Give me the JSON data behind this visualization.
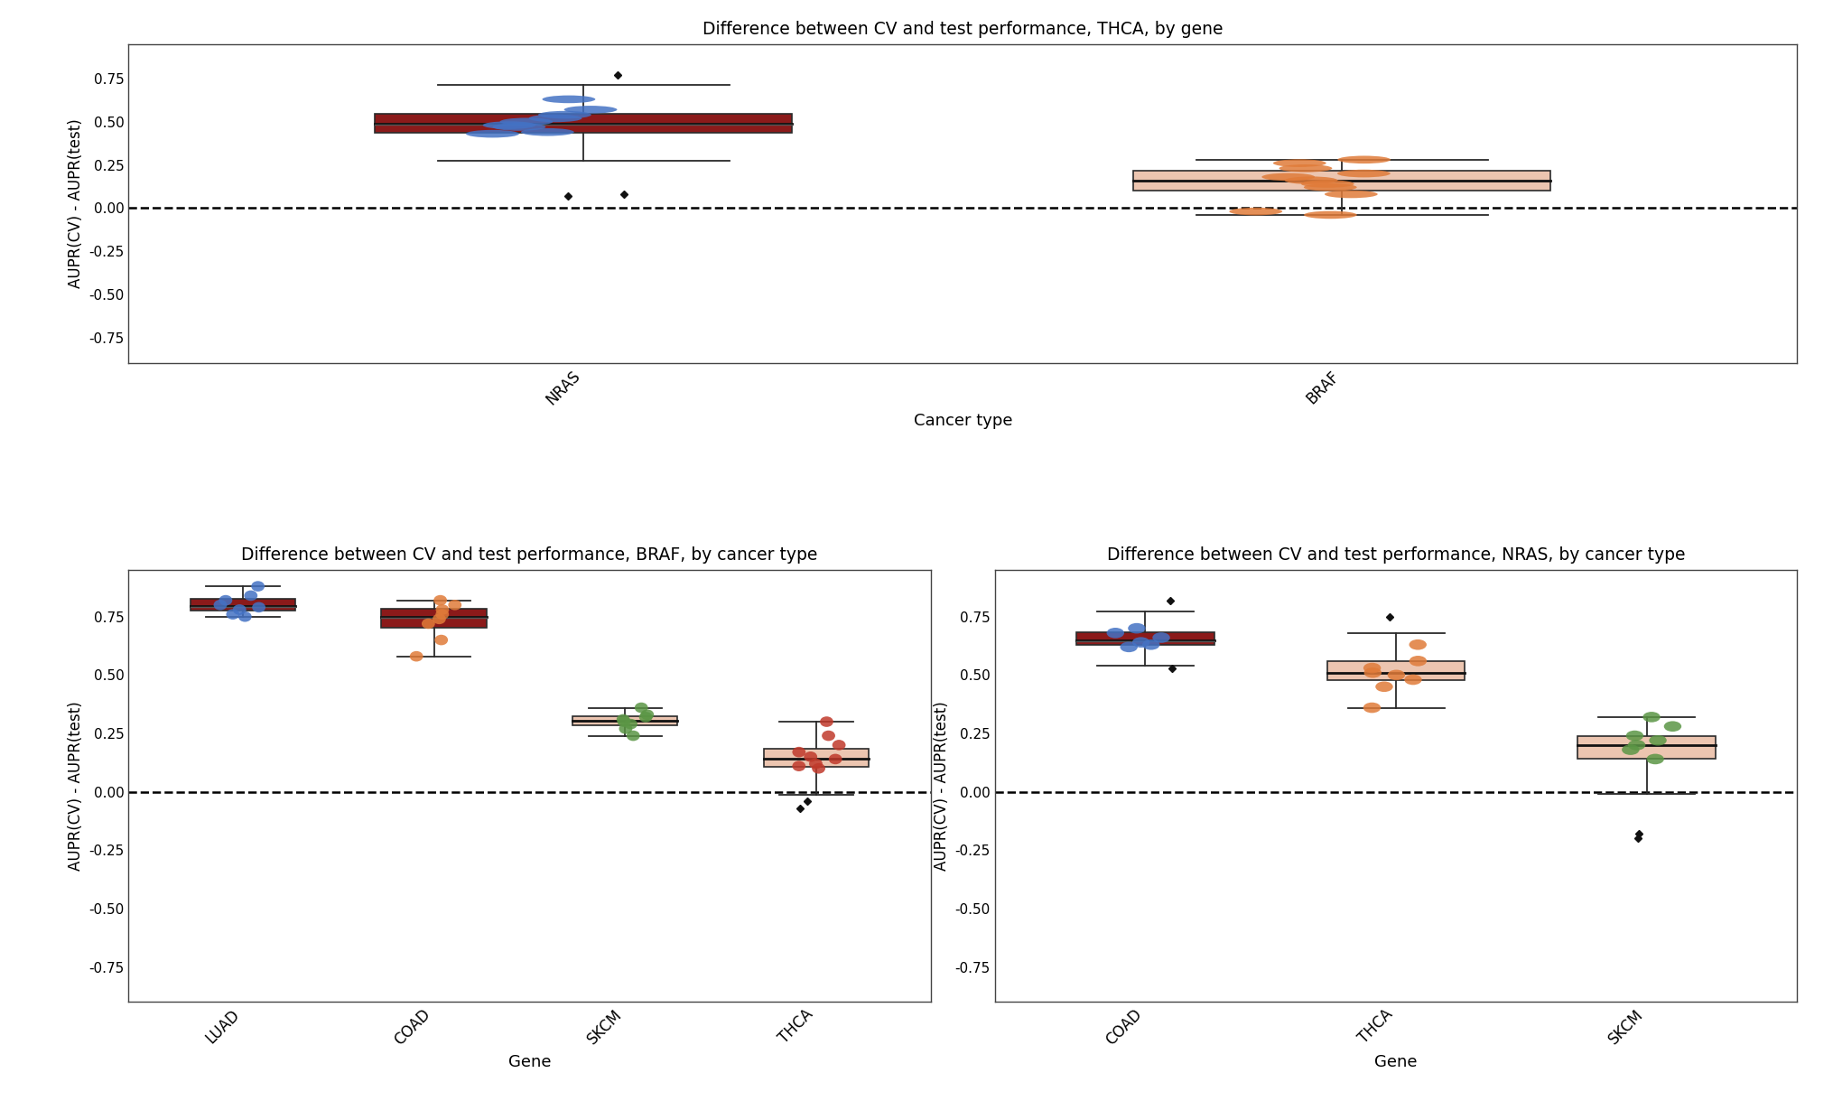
{
  "top_title": "Difference between CV and test performance, THCA, by gene",
  "top_xlabel": "Cancer type",
  "top_ylabel": "AUPR(CV) - AUPR(test)",
  "ylim": [
    -0.9,
    0.95
  ],
  "yticks": [
    -0.75,
    -0.5,
    -0.25,
    0.0,
    0.25,
    0.5,
    0.75
  ],
  "top_NRAS_points": [
    0.77,
    0.63,
    0.57,
    0.54,
    0.52,
    0.5,
    0.48,
    0.47,
    0.44,
    0.43,
    0.08,
    0.07
  ],
  "top_BRAF_points": [
    0.28,
    0.26,
    0.23,
    0.2,
    0.18,
    0.16,
    0.14,
    0.12,
    0.08,
    -0.02,
    -0.04
  ],
  "bot_left_title": "Difference between CV and test performance, BRAF, by cancer type",
  "bot_left_xlabel": "Gene",
  "bot_left_ylabel": "AUPR(CV) - AUPR(test)",
  "bot_left_categories": [
    "LUAD",
    "COAD",
    "SKCM",
    "THCA"
  ],
  "bot_left_LUAD_points": [
    0.88,
    0.84,
    0.82,
    0.8,
    0.79,
    0.78,
    0.76,
    0.75
  ],
  "bot_left_COAD_points": [
    0.82,
    0.8,
    0.78,
    0.76,
    0.74,
    0.72,
    0.65,
    0.58
  ],
  "bot_left_SKCM_points": [
    0.36,
    0.33,
    0.32,
    0.31,
    0.3,
    0.29,
    0.27,
    0.24
  ],
  "bot_left_THCA_points": [
    0.3,
    0.24,
    0.2,
    0.17,
    0.15,
    0.14,
    0.12,
    0.11,
    0.1,
    -0.04,
    -0.07
  ],
  "bot_right_title": "Difference between CV and test performance, NRAS, by cancer type",
  "bot_right_xlabel": "Gene",
  "bot_right_ylabel": "AUPR(CV) - AUPR(test)",
  "bot_right_categories": [
    "COAD",
    "THCA",
    "SKCM"
  ],
  "bot_right_COAD_points": [
    0.82,
    0.7,
    0.68,
    0.66,
    0.64,
    0.63,
    0.62,
    0.53
  ],
  "bot_right_THCA_points": [
    0.75,
    0.63,
    0.56,
    0.53,
    0.51,
    0.5,
    0.48,
    0.45,
    0.36
  ],
  "bot_right_SKCM_points": [
    0.32,
    0.28,
    0.24,
    0.22,
    0.2,
    0.18,
    0.14,
    -0.18,
    -0.2
  ],
  "color_blue": "#4472C4",
  "color_orange": "#E07B39",
  "color_green": "#5B9645",
  "color_red": "#C0392B",
  "box_darkred": "#8B1A1A",
  "box_lightsalmon": "#ECC5B0",
  "box_lightgreen": "#ECC5B0"
}
